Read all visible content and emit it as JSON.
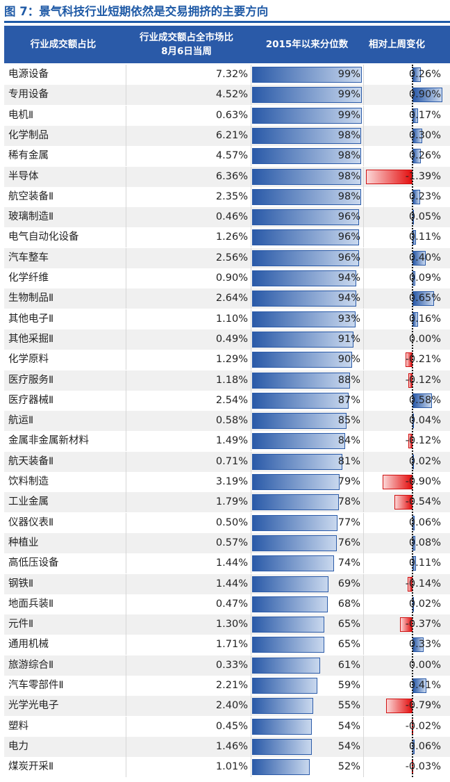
{
  "figure": {
    "title": "图 7：景气科技行业短期依然是交易拥挤的主要方向"
  },
  "header": {
    "col1": "行业成交额占比",
    "col2_line1": "行业成交额占全市场比",
    "col2_line2": "8月6日当周",
    "col3": "2015年以来分位数",
    "col4": "相对上周变化"
  },
  "colors": {
    "accent": "#2a5aa8",
    "negative": "#e30e0e"
  },
  "chart_data": {
    "type": "table",
    "title": "图 7：景气科技行业短期依然是交易拥挤的主要方向",
    "columns": [
      "行业成交额占比",
      "行业成交额占全市场比 8月6日当周",
      "2015年以来分位数",
      "相对上周变化"
    ],
    "rows": [
      {
        "industry": "电源设备",
        "share": "7.32%",
        "percentile": "99%",
        "change": "0.26%"
      },
      {
        "industry": "专用设备",
        "share": "4.52%",
        "percentile": "99%",
        "change": "0.90%"
      },
      {
        "industry": "电机Ⅱ",
        "share": "0.63%",
        "percentile": "99%",
        "change": "0.17%"
      },
      {
        "industry": "化学制品",
        "share": "6.21%",
        "percentile": "98%",
        "change": "0.30%"
      },
      {
        "industry": "稀有金属",
        "share": "4.57%",
        "percentile": "98%",
        "change": "0.26%"
      },
      {
        "industry": "半导体",
        "share": "6.36%",
        "percentile": "98%",
        "change": "-1.39%"
      },
      {
        "industry": "航空装备Ⅱ",
        "share": "2.35%",
        "percentile": "98%",
        "change": "0.23%"
      },
      {
        "industry": "玻璃制造Ⅱ",
        "share": "0.46%",
        "percentile": "96%",
        "change": "0.05%"
      },
      {
        "industry": "电气自动化设备",
        "share": "1.26%",
        "percentile": "96%",
        "change": "0.11%"
      },
      {
        "industry": "汽车整车",
        "share": "2.56%",
        "percentile": "96%",
        "change": "0.40%"
      },
      {
        "industry": "化学纤维",
        "share": "0.90%",
        "percentile": "94%",
        "change": "0.09%"
      },
      {
        "industry": "生物制品Ⅱ",
        "share": "2.64%",
        "percentile": "94%",
        "change": "0.65%"
      },
      {
        "industry": "其他电子Ⅱ",
        "share": "1.10%",
        "percentile": "93%",
        "change": "0.16%"
      },
      {
        "industry": "其他采掘Ⅱ",
        "share": "0.49%",
        "percentile": "91%",
        "change": "0.00%"
      },
      {
        "industry": "化学原料",
        "share": "1.29%",
        "percentile": "90%",
        "change": "-0.21%"
      },
      {
        "industry": "医疗服务Ⅱ",
        "share": "1.18%",
        "percentile": "88%",
        "change": "-0.12%"
      },
      {
        "industry": "医疗器械Ⅱ",
        "share": "2.54%",
        "percentile": "87%",
        "change": "0.58%"
      },
      {
        "industry": "航运Ⅱ",
        "share": "0.58%",
        "percentile": "85%",
        "change": "0.04%"
      },
      {
        "industry": "金属非金属新材料",
        "share": "1.49%",
        "percentile": "84%",
        "change": "-0.12%"
      },
      {
        "industry": "航天装备Ⅱ",
        "share": "0.71%",
        "percentile": "81%",
        "change": "0.02%"
      },
      {
        "industry": "饮料制造",
        "share": "3.19%",
        "percentile": "79%",
        "change": "-0.90%"
      },
      {
        "industry": "工业金属",
        "share": "1.79%",
        "percentile": "78%",
        "change": "-0.54%"
      },
      {
        "industry": "仪器仪表Ⅱ",
        "share": "0.50%",
        "percentile": "77%",
        "change": "0.06%"
      },
      {
        "industry": "种植业",
        "share": "0.57%",
        "percentile": "76%",
        "change": "0.08%"
      },
      {
        "industry": "高低压设备",
        "share": "1.44%",
        "percentile": "74%",
        "change": "0.11%"
      },
      {
        "industry": "钢铁Ⅱ",
        "share": "1.44%",
        "percentile": "69%",
        "change": "-0.14%"
      },
      {
        "industry": "地面兵装Ⅱ",
        "share": "0.47%",
        "percentile": "68%",
        "change": "0.02%"
      },
      {
        "industry": "元件Ⅱ",
        "share": "1.30%",
        "percentile": "65%",
        "change": "-0.37%"
      },
      {
        "industry": "通用机械",
        "share": "1.71%",
        "percentile": "65%",
        "change": "0.33%"
      },
      {
        "industry": "旅游综合Ⅱ",
        "share": "0.33%",
        "percentile": "61%",
        "change": "0.00%"
      },
      {
        "industry": "汽车零部件Ⅱ",
        "share": "2.21%",
        "percentile": "59%",
        "change": "0.41%"
      },
      {
        "industry": "光学光电子",
        "share": "2.40%",
        "percentile": "55%",
        "change": "-0.79%"
      },
      {
        "industry": "塑料",
        "share": "0.45%",
        "percentile": "54%",
        "change": "-0.02%"
      },
      {
        "industry": "电力",
        "share": "1.46%",
        "percentile": "54%",
        "change": "0.06%"
      },
      {
        "industry": "煤炭开采Ⅱ",
        "share": "1.01%",
        "percentile": "52%",
        "change": "-0.03%"
      }
    ]
  }
}
